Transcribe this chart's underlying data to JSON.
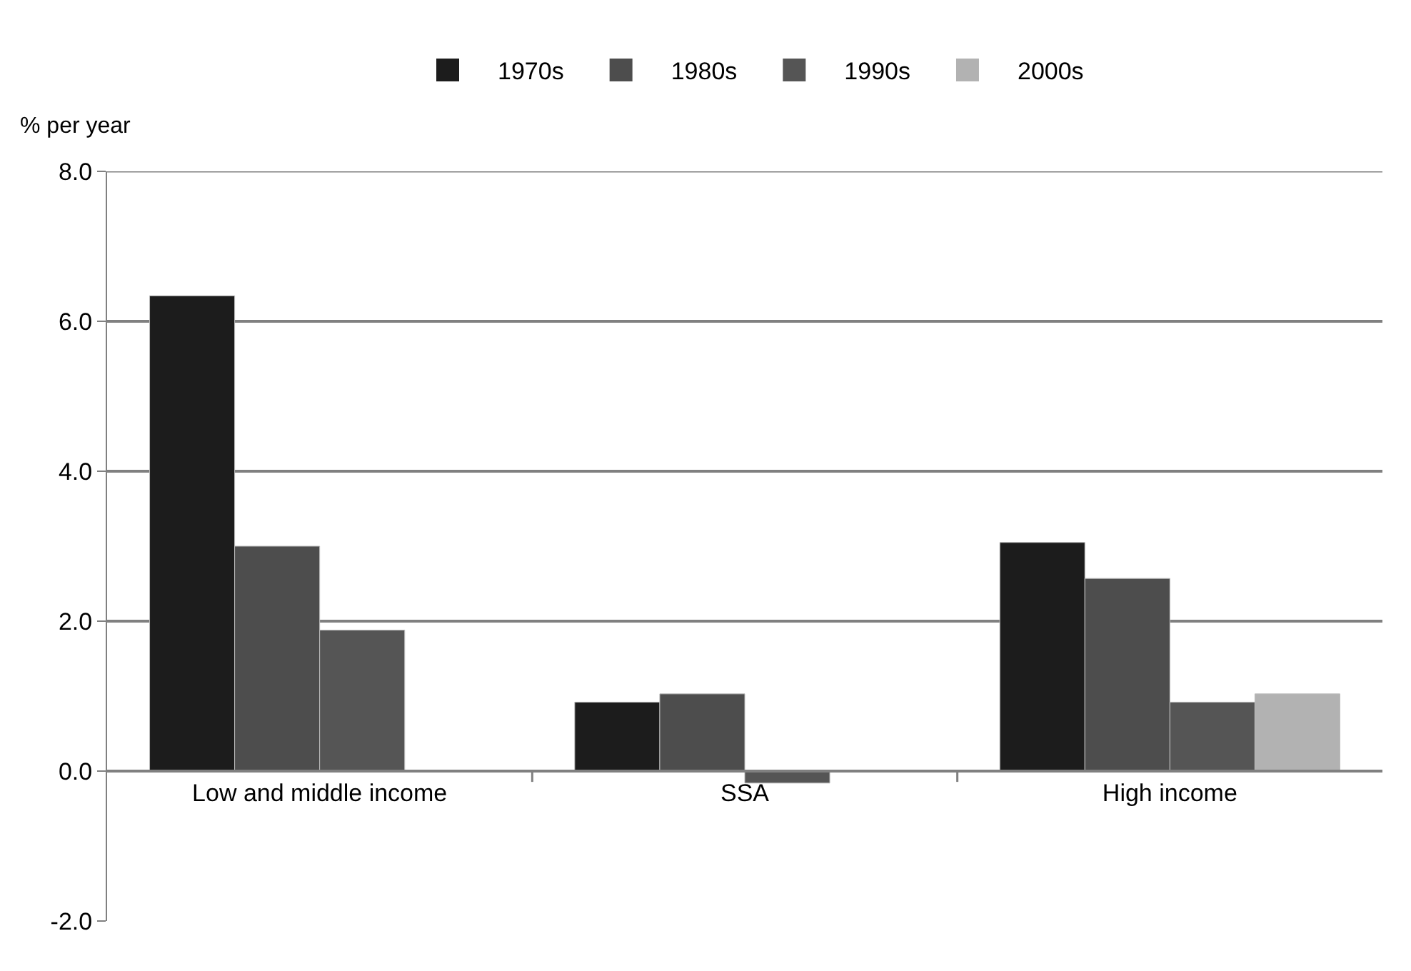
{
  "chart_data": {
    "type": "bar",
    "ylabel": "% per year",
    "categories": [
      "Low and middle income",
      "SSA",
      "High income"
    ],
    "series": [
      {
        "name": "1970s",
        "color": "#1c1c1c",
        "values": [
          6.34,
          0.92,
          3.05
        ]
      },
      {
        "name": "1980s",
        "color": "#4d4d4d",
        "values": [
          3.0,
          1.03,
          2.57
        ]
      },
      {
        "name": "1990s",
        "color": "#555555",
        "values": [
          1.88,
          -0.16,
          0.92
        ]
      },
      {
        "name": "2000s",
        "color": "#b2b2b2",
        "values": [
          null,
          null,
          1.03
        ]
      }
    ],
    "ylim": [
      -2,
      8
    ],
    "yticks": [
      {
        "value": -2,
        "label": "-2.0"
      },
      {
        "value": 0,
        "label": "0.0"
      },
      {
        "value": 2,
        "label": "2.0"
      },
      {
        "value": 4,
        "label": "4.0"
      },
      {
        "value": 6,
        "label": "6.0"
      },
      {
        "value": 8,
        "label": "8.0"
      }
    ],
    "grid": "y",
    "legend": "top"
  }
}
